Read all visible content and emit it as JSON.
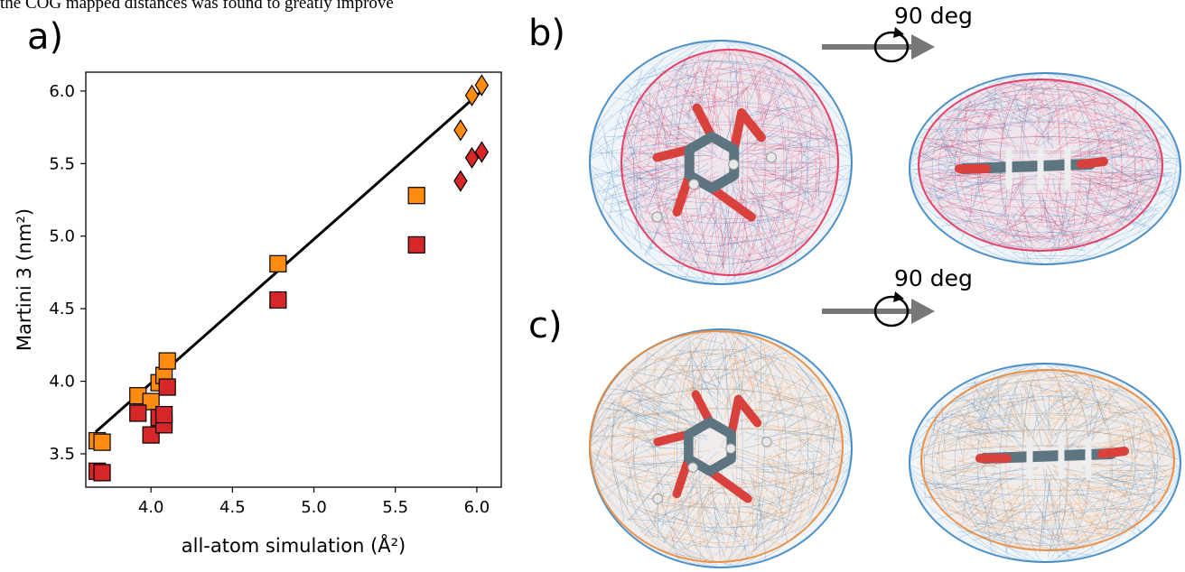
{
  "top_text": "the COG mapped distances was found to greatly improve",
  "panels": {
    "a": "a)",
    "b": "b)",
    "c": "c)"
  },
  "rotation": {
    "label": "90 deg"
  },
  "colors": {
    "orange": "#ff8c10",
    "red": "#d62728",
    "mesh_blue": "#3c85c2",
    "mesh_pink": "#e8305a",
    "mesh_orange": "#ec8a3a"
  },
  "chart_data": {
    "type": "scatter",
    "xlabel": "all-atom simulation (Å²)",
    "ylabel": "Martini 3 (nm²)",
    "xlim": [
      3.6,
      6.15
    ],
    "ylim": [
      3.27,
      6.13
    ],
    "xticks": [
      "4.0",
      "4.5",
      "5.0",
      "5.5",
      "6.0"
    ],
    "yticks": [
      "3.5",
      "4.0",
      "4.5",
      "5.0",
      "5.5",
      "6.0"
    ],
    "grid": false,
    "fit_line": {
      "x": [
        3.66,
        6.03
      ],
      "y": [
        3.65,
        6.0
      ]
    },
    "series": [
      {
        "marker": "square",
        "color": "#ff8c10",
        "x": [
          3.67,
          3.7,
          3.92,
          4.0,
          4.05,
          4.08,
          4.1,
          4.78,
          5.63
        ],
        "y": [
          3.59,
          3.58,
          3.9,
          3.86,
          3.99,
          4.04,
          4.14,
          4.81,
          5.28
        ]
      },
      {
        "marker": "diamond",
        "color": "#ff8c10",
        "x": [
          5.9,
          5.97,
          6.03
        ],
        "y": [
          5.73,
          5.97,
          6.04
        ]
      },
      {
        "marker": "square",
        "color": "#d62728",
        "x": [
          3.67,
          3.7,
          3.92,
          4.0,
          4.05,
          4.08,
          4.08,
          4.1,
          4.78,
          5.63
        ],
        "y": [
          3.38,
          3.37,
          3.78,
          3.63,
          3.75,
          3.7,
          3.77,
          3.96,
          4.56,
          4.94
        ]
      },
      {
        "marker": "diamond",
        "color": "#d62728",
        "x": [
          5.9,
          5.97,
          6.03
        ],
        "y": [
          5.38,
          5.54,
          5.58
        ]
      }
    ]
  }
}
